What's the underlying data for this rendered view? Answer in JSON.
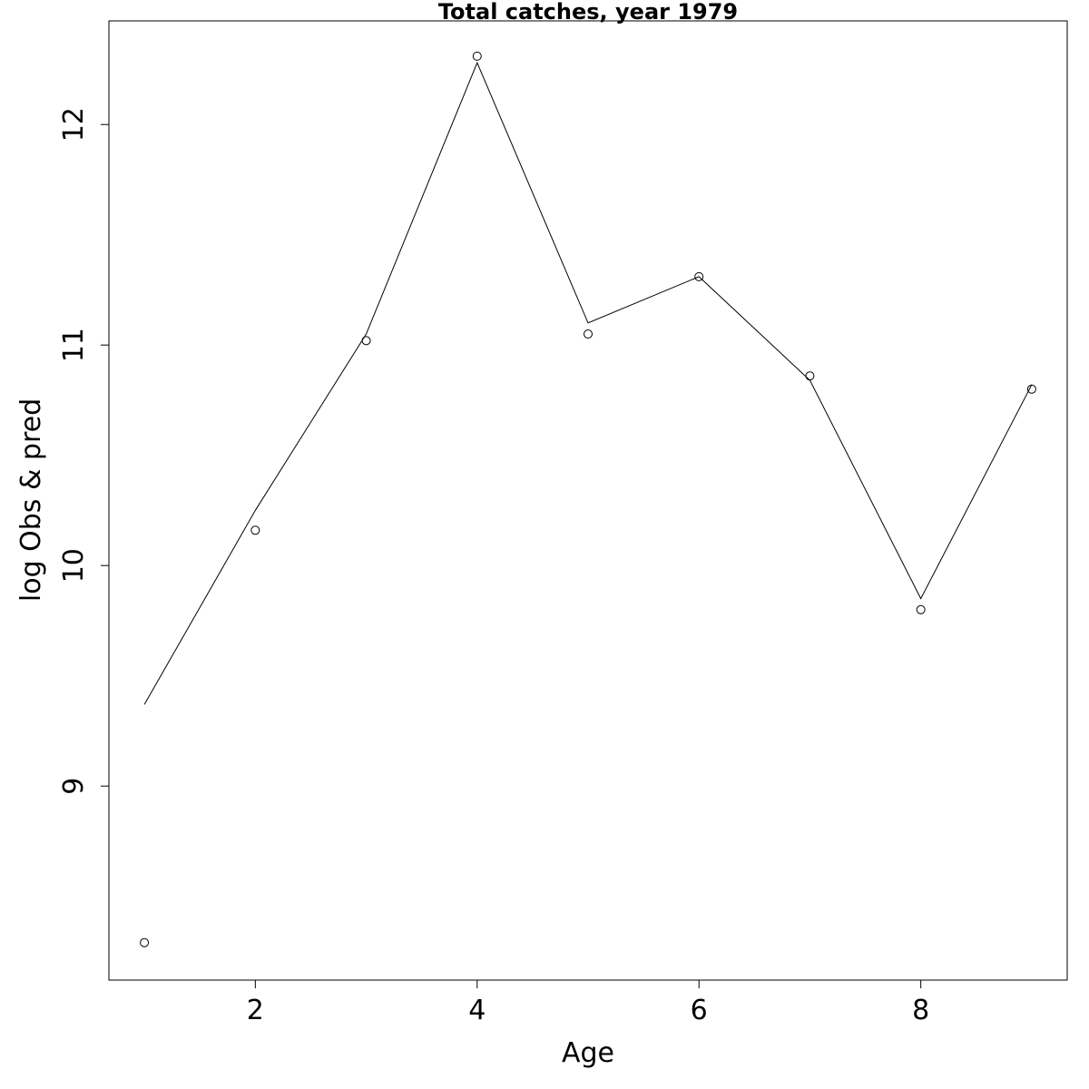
{
  "chart_data": {
    "type": "line",
    "title": "Total catches, year 1979",
    "xlabel": "Age",
    "ylabel": "log Obs & pred",
    "xlim": [
      0.68,
      9.32
    ],
    "ylim": [
      8.12,
      12.47
    ],
    "x_ticks": [
      2,
      4,
      6,
      8
    ],
    "y_ticks": [
      9,
      10,
      11,
      12
    ],
    "grid": false,
    "series": [
      {
        "style": "points",
        "x": [
          1,
          2,
          3,
          4,
          5,
          6,
          7,
          8,
          9
        ],
        "values": [
          8.29,
          10.16,
          11.02,
          12.31,
          11.05,
          11.31,
          10.86,
          9.8,
          10.8
        ]
      },
      {
        "style": "line",
        "x": [
          1,
          2,
          3,
          4,
          5,
          6,
          7,
          8,
          9
        ],
        "values": [
          9.37,
          10.25,
          11.05,
          12.28,
          11.1,
          11.31,
          10.84,
          9.85,
          10.82
        ]
      }
    ]
  }
}
